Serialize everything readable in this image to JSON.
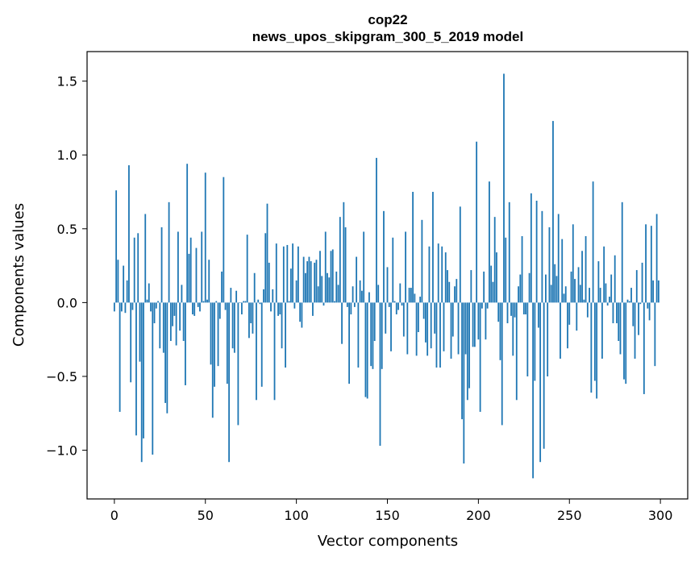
{
  "chart_data": {
    "type": "bar",
    "title": "cop22",
    "subtitle": "news_upos_skipgram_300_5_2019 model",
    "xlabel": "Vector components",
    "ylabel": "Components values",
    "xlim": [
      -15,
      315
    ],
    "ylim": [
      -1.33,
      1.7
    ],
    "xticks": [
      0,
      50,
      100,
      150,
      200,
      250,
      300
    ],
    "yticks": [
      -1.0,
      -0.5,
      0.0,
      0.5,
      1.0,
      1.5
    ],
    "xtick_labels": [
      "0",
      "50",
      "100",
      "150",
      "200",
      "250",
      "300"
    ],
    "ytick_labels": [
      "−1.0",
      "−0.5",
      "0.0",
      "0.5",
      "1.0",
      "1.5"
    ],
    "bar_color": "#1f77b4",
    "grid": false,
    "x_start": 0,
    "values": [
      -0.06,
      0.76,
      0.29,
      -0.74,
      -0.06,
      0.25,
      -0.07,
      0.15,
      0.93,
      -0.54,
      -0.05,
      0.44,
      -0.9,
      0.47,
      -0.4,
      -1.08,
      -0.92,
      0.6,
      0.02,
      0.13,
      -0.06,
      -1.03,
      -0.14,
      -0.04,
      0.01,
      -0.31,
      0.51,
      -0.34,
      -0.68,
      -0.75,
      0.68,
      -0.26,
      -0.16,
      -0.09,
      -0.29,
      0.48,
      -0.19,
      0.12,
      -0.26,
      -0.56,
      0.94,
      0.33,
      0.44,
      -0.08,
      -0.09,
      0.37,
      -0.03,
      -0.06,
      0.48,
      0.01,
      0.88,
      0.02,
      0.29,
      -0.42,
      -0.78,
      -0.57,
      0.01,
      -0.43,
      -0.11,
      0.21,
      0.85,
      -0.05,
      -0.55,
      -1.08,
      0.1,
      -0.31,
      -0.34,
      0.08,
      -0.83,
      0.0,
      -0.08,
      0.01,
      0.01,
      0.46,
      -0.24,
      -0.14,
      -0.21,
      0.2,
      -0.66,
      0.02,
      -0.01,
      -0.57,
      0.09,
      0.47,
      0.67,
      0.27,
      -0.06,
      0.09,
      -0.66,
      0.4,
      -0.09,
      -0.08,
      -0.31,
      0.38,
      -0.44,
      0.39,
      0.01,
      0.23,
      0.4,
      -0.04,
      0.15,
      0.38,
      -0.13,
      -0.17,
      0.31,
      0.2,
      0.28,
      0.31,
      0.28,
      -0.09,
      0.27,
      0.29,
      0.11,
      0.35,
      0.18,
      -0.02,
      0.48,
      0.2,
      0.17,
      0.35,
      0.36,
      0.01,
      0.21,
      0.12,
      0.58,
      -0.28,
      0.68,
      0.51,
      -0.03,
      -0.55,
      -0.08,
      0.11,
      -0.03,
      0.31,
      -0.44,
      0.15,
      0.08,
      0.48,
      -0.64,
      -0.65,
      0.07,
      -0.43,
      -0.45,
      -0.26,
      0.98,
      0.12,
      -0.97,
      -0.45,
      0.62,
      -0.21,
      0.24,
      -0.03,
      -0.33,
      0.44,
      0.01,
      -0.08,
      -0.05,
      0.13,
      -0.02,
      -0.23,
      0.48,
      -0.35,
      0.1,
      0.1,
      0.75,
      0.06,
      -0.36,
      -0.2,
      0.04,
      0.56,
      -0.11,
      -0.27,
      -0.36,
      0.38,
      -0.31,
      0.75,
      -0.21,
      -0.44,
      0.4,
      -0.44,
      0.38,
      -0.33,
      0.34,
      0.22,
      0.14,
      -0.38,
      -0.23,
      0.11,
      0.16,
      -0.35,
      0.65,
      -0.79,
      -1.09,
      -0.35,
      -0.66,
      -0.58,
      0.22,
      -0.3,
      -0.3,
      1.09,
      -0.25,
      -0.74,
      -0.04,
      0.21,
      -0.25,
      -0.04,
      0.82,
      0.25,
      0.14,
      0.58,
      0.34,
      -0.13,
      -0.39,
      -0.83,
      1.55,
      0.44,
      -0.14,
      0.68,
      -0.09,
      -0.36,
      -0.1,
      -0.66,
      0.11,
      0.19,
      0.45,
      -0.08,
      -0.08,
      -0.5,
      0.2,
      0.74,
      -1.19,
      -0.53,
      0.69,
      -0.17,
      -1.08,
      0.62,
      -0.99,
      0.19,
      -0.5,
      0.51,
      0.12,
      1.23,
      0.26,
      0.18,
      0.6,
      -0.38,
      0.43,
      0.06,
      0.11,
      -0.31,
      -0.15,
      0.21,
      0.53,
      0.16,
      -0.19,
      0.24,
      0.12,
      0.35,
      0.02,
      0.45,
      -0.1,
      0.1,
      -0.61,
      0.82,
      -0.53,
      -0.65,
      0.28,
      0.1,
      -0.38,
      0.38,
      0.13,
      -0.02,
      0.04,
      0.19,
      -0.14,
      0.32,
      -0.14,
      -0.26,
      -0.35,
      0.68,
      -0.52,
      -0.55,
      0.02,
      0.01,
      0.1,
      -0.16,
      -0.38,
      0.22,
      -0.22,
      -0.01,
      0.27,
      -0.62,
      0.53,
      -0.04,
      -0.12,
      0.52,
      0.15,
      -0.43,
      0.6,
      0.15
    ]
  }
}
